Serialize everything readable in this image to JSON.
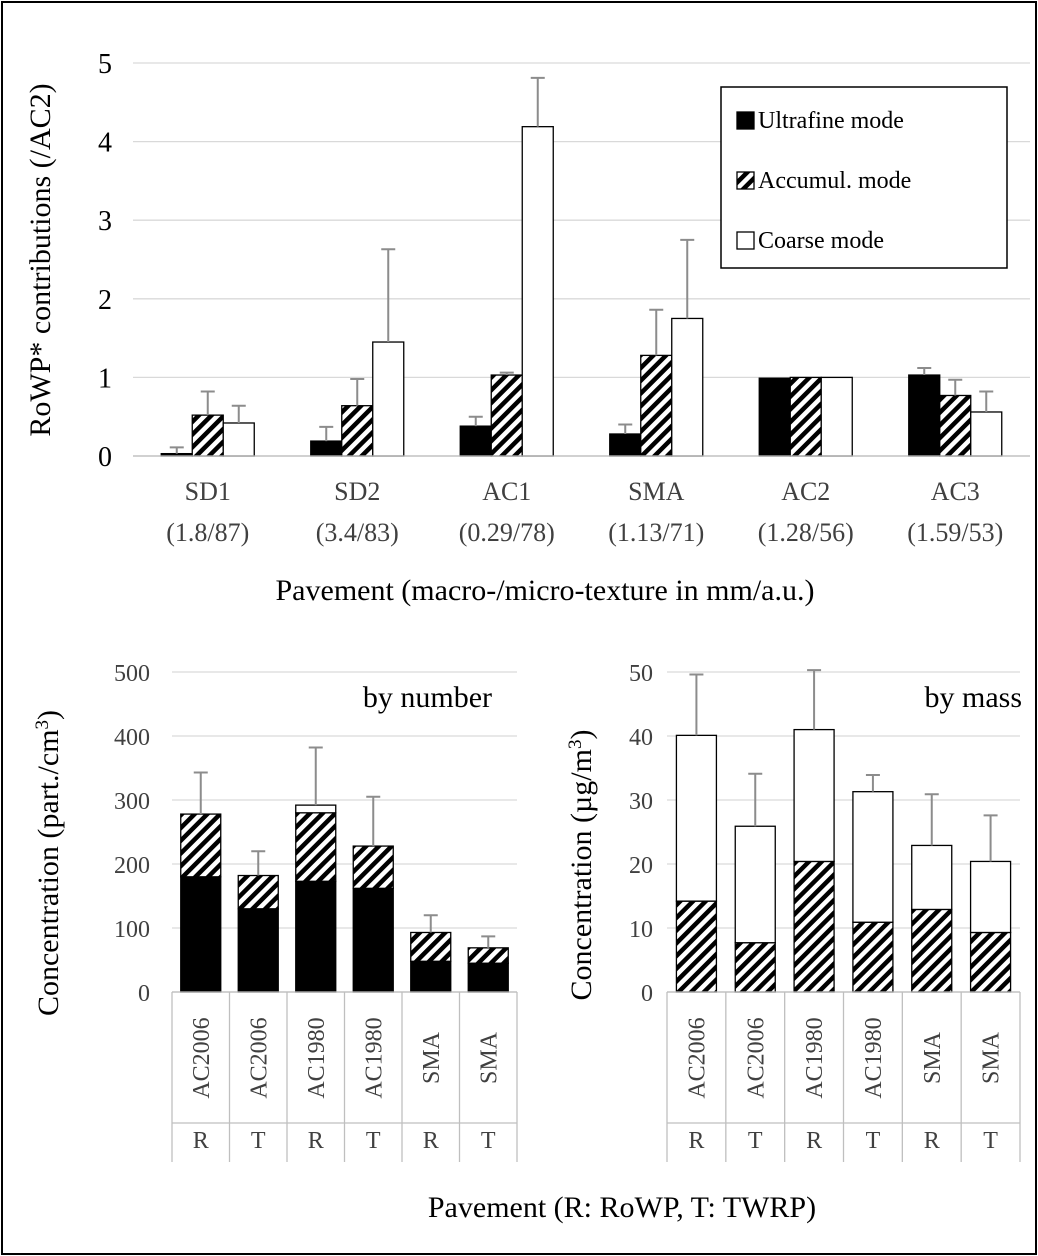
{
  "chart_data": [
    {
      "type": "bar",
      "categories": [
        "SD1",
        "SD2",
        "AC1",
        "SMA",
        "AC2",
        "AC3"
      ],
      "category_sublabels": [
        "(1.8/87)",
        "(3.4/83)",
        "(0.29/78)",
        "(1.13/71)",
        "(1.28/56)",
        "(1.59/53)"
      ],
      "ylabel": "RoWP* contributions (/AC2)",
      "xlabel": "Pavement (macro-/micro-texture in mm/a.u.)",
      "ylim": [
        0,
        5
      ],
      "yticks": [
        0,
        1,
        2,
        3,
        4,
        5
      ],
      "grid": true,
      "legend_position": "top-right",
      "series": [
        {
          "name": "Ultrafine mode",
          "pattern": "solid",
          "values": [
            0.03,
            0.19,
            0.38,
            0.28,
            0.99,
            1.03
          ],
          "error": [
            0.08,
            0.18,
            0.12,
            0.12,
            0.0,
            0.09
          ]
        },
        {
          "name": "Accumul. mode",
          "pattern": "hatched",
          "values": [
            0.52,
            0.64,
            1.03,
            1.28,
            1.0,
            0.77
          ],
          "error": [
            0.3,
            0.34,
            0.03,
            0.58,
            0.0,
            0.2
          ]
        },
        {
          "name": "Coarse mode",
          "pattern": "open",
          "values": [
            0.42,
            1.45,
            4.19,
            1.75,
            1.0,
            0.56
          ],
          "error": [
            0.22,
            1.18,
            0.62,
            1.0,
            0.0,
            0.26
          ]
        }
      ]
    },
    {
      "type": "bar",
      "stacked": true,
      "annotation": "by number",
      "ylabel": "Concentration (part./cm",
      "ylabel_sup": "3",
      "ylabel_end": ")",
      "ylim": [
        0,
        500
      ],
      "yticks": [
        0,
        100,
        200,
        300,
        400,
        500
      ],
      "grid": true,
      "categories": [
        "AC2006",
        "AC2006",
        "AC1980",
        "AC1980",
        "SMA",
        "SMA"
      ],
      "category_codes": [
        "R",
        "T",
        "R",
        "T",
        "R",
        "T"
      ],
      "series": [
        {
          "pattern": "solid",
          "values": [
            180,
            130,
            173,
            162,
            48,
            45
          ]
        },
        {
          "pattern": "hatched",
          "values": [
            98,
            52,
            107,
            66,
            45,
            24
          ]
        },
        {
          "pattern": "open",
          "values": [
            0,
            0,
            12,
            0,
            0,
            0
          ]
        }
      ],
      "totals": [
        278,
        182,
        292,
        228,
        93,
        69
      ],
      "error": [
        65,
        38,
        90,
        77,
        27,
        18
      ]
    },
    {
      "type": "bar",
      "stacked": true,
      "annotation": "by mass",
      "ylabel": "Concentration (µg/m",
      "ylabel_sup": "3",
      "ylabel_end": ")",
      "ylim": [
        0,
        50
      ],
      "yticks": [
        0,
        10,
        20,
        30,
        40,
        50
      ],
      "grid": true,
      "categories": [
        "AC2006",
        "AC2006",
        "AC1980",
        "AC1980",
        "SMA",
        "SMA"
      ],
      "category_codes": [
        "R",
        "T",
        "R",
        "T",
        "R",
        "T"
      ],
      "series": [
        {
          "pattern": "hatched",
          "values": [
            14.2,
            7.7,
            20.4,
            10.9,
            12.9,
            9.3
          ]
        },
        {
          "pattern": "open",
          "values": [
            25.9,
            18.2,
            20.6,
            20.4,
            10.0,
            11.1
          ]
        }
      ],
      "totals": [
        40.1,
        25.9,
        41.0,
        31.3,
        22.9,
        20.4
      ],
      "error": [
        9.5,
        8.2,
        9.3,
        2.6,
        8.0,
        7.2
      ]
    }
  ],
  "bottom_xlabel": "Pavement (R: RoWP, T: TWRP)"
}
